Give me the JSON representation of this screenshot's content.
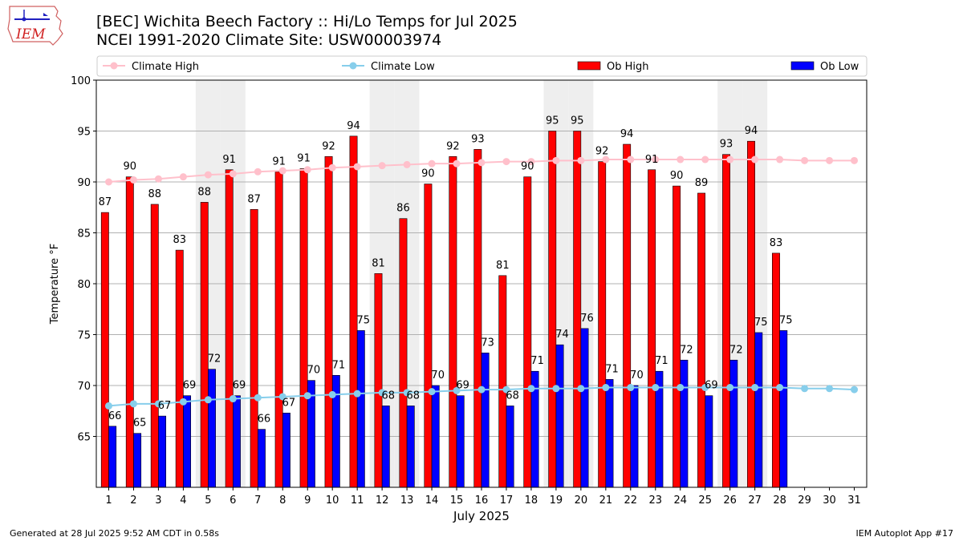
{
  "header": {
    "title": "[BEC] Wichita Beech Factory :: Hi/Lo Temps for Jul 2025",
    "subtitle": "NCEI 1991-2020 Climate Site: USW00003974"
  },
  "logo": {
    "text": "IEM"
  },
  "footer": {
    "left": "Generated at 28 Jul 2025 9:52 AM CDT in 0.58s",
    "right": "IEM Autoplot App #17"
  },
  "chart_data": {
    "type": "bar",
    "xlabel": "July 2025",
    "ylabel": "Temperature °F",
    "ylim": [
      60,
      100
    ],
    "yticks": [
      65,
      70,
      75,
      80,
      85,
      90,
      95,
      100
    ],
    "categories": [
      "1",
      "2",
      "3",
      "4",
      "5",
      "6",
      "7",
      "8",
      "9",
      "10",
      "11",
      "12",
      "13",
      "14",
      "15",
      "16",
      "17",
      "18",
      "19",
      "20",
      "21",
      "22",
      "23",
      "24",
      "25",
      "26",
      "27",
      "28",
      "29",
      "30",
      "31"
    ],
    "weekend_days": [
      5,
      6,
      12,
      13,
      19,
      20,
      26,
      27
    ],
    "grid": "horizontal",
    "legend_position": "top",
    "series": [
      {
        "name": "Climate High",
        "kind": "line",
        "color": "#FFC0CB",
        "values": [
          90.0,
          90.2,
          90.3,
          90.5,
          90.7,
          90.8,
          91.0,
          91.1,
          91.2,
          91.4,
          91.5,
          91.6,
          91.7,
          91.8,
          91.8,
          91.9,
          92.0,
          92.0,
          92.1,
          92.1,
          92.2,
          92.2,
          92.2,
          92.2,
          92.2,
          92.2,
          92.2,
          92.2,
          92.1,
          92.1,
          92.1
        ]
      },
      {
        "name": "Climate Low",
        "kind": "line",
        "color": "#87CEEB",
        "values": [
          68.0,
          68.2,
          68.2,
          68.4,
          68.6,
          68.7,
          68.8,
          68.9,
          69.0,
          69.1,
          69.2,
          69.3,
          69.3,
          69.4,
          69.5,
          69.6,
          69.6,
          69.7,
          69.7,
          69.7,
          69.8,
          69.8,
          69.8,
          69.8,
          69.8,
          69.8,
          69.8,
          69.8,
          69.7,
          69.7,
          69.6
        ]
      },
      {
        "name": "Ob High",
        "kind": "bar",
        "color": "#FF0000",
        "values": [
          87,
          90.5,
          87.8,
          83.3,
          88,
          91.2,
          87.3,
          91,
          91.3,
          92.5,
          94.5,
          81,
          86.4,
          89.8,
          92.5,
          93.2,
          80.8,
          90.5,
          95,
          95,
          92,
          93.7,
          91.2,
          89.6,
          88.9,
          92.7,
          94,
          83,
          null,
          null,
          null
        ],
        "labels": [
          "87",
          "90",
          "88",
          "83",
          "88",
          "91",
          "87",
          "91",
          "91",
          "92",
          "94",
          "81",
          "86",
          "90",
          "92",
          "93",
          "81",
          "90",
          "95",
          "95",
          "92",
          "94",
          "91",
          "90",
          "89",
          "93",
          "94",
          "83",
          "",
          "",
          ""
        ]
      },
      {
        "name": "Ob Low",
        "kind": "bar",
        "color": "#0000FF",
        "values": [
          66,
          65.3,
          67,
          69,
          71.6,
          69,
          65.7,
          67.3,
          70.5,
          71,
          75.4,
          68,
          68,
          70,
          69,
          73.2,
          68,
          71.4,
          74,
          75.6,
          70.6,
          70,
          71.4,
          72.5,
          69,
          72.5,
          75.2,
          75.4,
          null,
          null,
          null
        ],
        "labels": [
          "66",
          "65",
          "67",
          "69",
          "72",
          "69",
          "66",
          "67",
          "70",
          "71",
          "75",
          "68",
          "68",
          "70",
          "69",
          "73",
          "68",
          "71",
          "74",
          "76",
          "71",
          "70",
          "71",
          "72",
          "69",
          "72",
          "75",
          "75",
          "",
          "",
          ""
        ]
      }
    ]
  }
}
